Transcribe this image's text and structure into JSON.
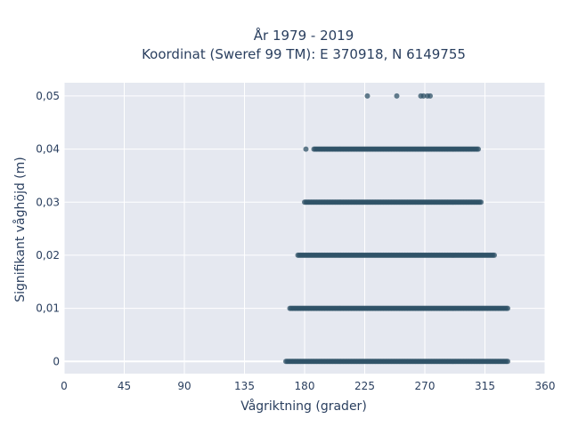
{
  "chart_data": {
    "type": "scatter",
    "title_line1": "År 1979 - 2019",
    "title_line2": "Koordinat (Sweref 99 TM): E 370918, N 6149755",
    "xlabel": "Vågriktning (grader)",
    "ylabel": "Signifikant våghöjd (m)",
    "xlim": [
      0,
      360
    ],
    "ylim": [
      -0.0023,
      0.0525
    ],
    "x_ticks": [
      0,
      45,
      90,
      135,
      180,
      225,
      270,
      315,
      360
    ],
    "y_ticks": [
      0,
      0.01,
      0.02,
      0.03,
      0.04,
      0.05
    ],
    "y_tick_labels": [
      "0",
      "0,01",
      "0,02",
      "0,03",
      "0,04",
      "0,05"
    ],
    "grid": true,
    "marker_color": "#2f5167",
    "plot_background": "#e5e8f0",
    "series": [
      {
        "values_by_height": [
          {
            "y": 0.05,
            "x": [
              227,
              249,
              267,
              269,
              272,
              274
            ]
          },
          {
            "y": 0.04,
            "ranges": [
              [
                181,
                181
              ],
              [
                187,
                195
              ],
              [
                196,
                310
              ]
            ]
          },
          {
            "y": 0.03,
            "ranges": [
              [
                180,
                312
              ]
            ]
          },
          {
            "y": 0.02,
            "ranges": [
              [
                175,
                322
              ]
            ]
          },
          {
            "y": 0.01,
            "ranges": [
              [
                169,
                332
              ]
            ]
          },
          {
            "y": 0.0,
            "ranges": [
              [
                166,
                332
              ]
            ]
          }
        ]
      }
    ]
  }
}
